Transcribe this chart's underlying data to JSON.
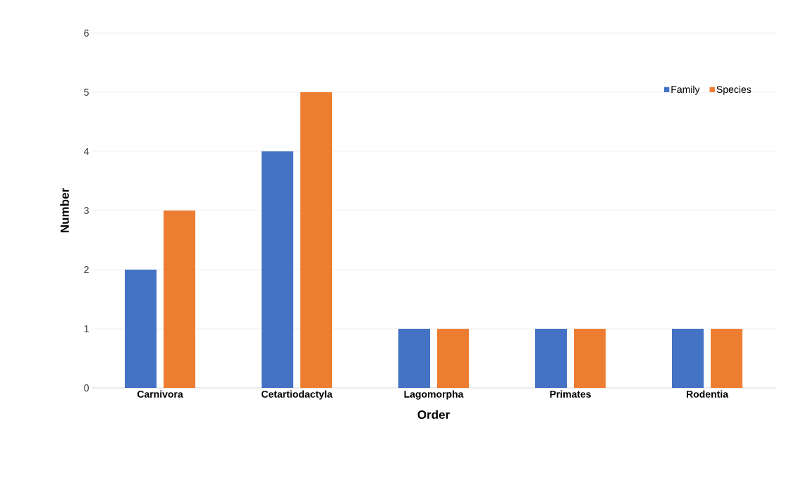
{
  "chart_data": {
    "type": "bar",
    "xlabel": "Order",
    "ylabel": "Number",
    "categories": [
      "Carnivora",
      "Cetartiodactyla",
      "Lagomorpha",
      "Primates",
      "Rodentia"
    ],
    "series": [
      {
        "name": "Family",
        "color": "#4472c4",
        "values": [
          2,
          4,
          1,
          1,
          1
        ]
      },
      {
        "name": "Species",
        "color": "#ed7d31",
        "values": [
          3,
          5,
          1,
          1,
          1
        ]
      }
    ],
    "ylim": [
      0,
      6
    ],
    "yticks": [
      0,
      1,
      2,
      3,
      4,
      5,
      6
    ],
    "grid": "y",
    "legend": "top right"
  }
}
